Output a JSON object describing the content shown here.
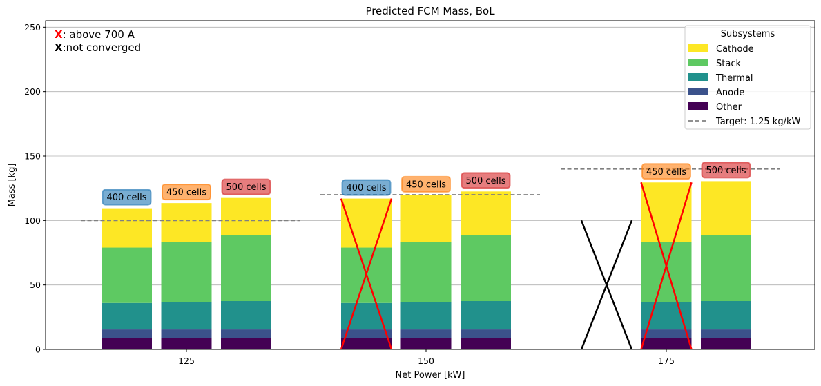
{
  "chart_data": {
    "type": "bar",
    "stacked": true,
    "title": "Predicted FCM Mass, BoL",
    "xlabel": "Net Power [kW]",
    "ylabel": "Mass [kg]",
    "ylim": [
      0,
      255
    ],
    "yticks": [
      0,
      50,
      100,
      150,
      200,
      250
    ],
    "grid": "y",
    "legend": {
      "title": "Subsystems",
      "placement": "top-right",
      "target_label": "Target: 1.25 kg/kW"
    },
    "series": [
      {
        "name": "Other",
        "color": "#440154"
      },
      {
        "name": "Anode",
        "color": "#3b528b"
      },
      {
        "name": "Thermal",
        "color": "#21918c"
      },
      {
        "name": "Stack",
        "color": "#5ec962"
      },
      {
        "name": "Cathode",
        "color": "#fde725"
      }
    ],
    "cell_colors": {
      "400 cells": "#1f77b4",
      "450 cells": "#ff7f0e",
      "500 cells": "#d62728"
    },
    "groups": [
      {
        "net_power": "125",
        "target": 100,
        "bars": [
          {
            "label": "400 cells",
            "values": [
              9,
              6.5,
              20.5,
              43,
              30.5
            ],
            "flag": "none"
          },
          {
            "label": "450 cells",
            "values": [
              9,
              6.5,
              21,
              47,
              30
            ],
            "flag": "none"
          },
          {
            "label": "500 cells",
            "values": [
              9,
              6.5,
              22,
              51,
              29
            ],
            "flag": "none"
          }
        ]
      },
      {
        "net_power": "150",
        "target": 120,
        "bars": [
          {
            "label": "400 cells",
            "values": [
              9,
              6.5,
              20.5,
              43,
              38
            ],
            "flag": "above_700A"
          },
          {
            "label": "450 cells",
            "values": [
              9,
              6.5,
              21,
              47,
              36
            ],
            "flag": "none"
          },
          {
            "label": "500 cells",
            "values": [
              9,
              6.5,
              22,
              51,
              34
            ],
            "flag": "none"
          }
        ]
      },
      {
        "net_power": "175",
        "target": 140,
        "bars": [
          {
            "label": "400 cells",
            "values": [],
            "flag": "not_converged"
          },
          {
            "label": "450 cells",
            "values": [
              9,
              6.5,
              21,
              47,
              46
            ],
            "flag": "above_700A"
          },
          {
            "label": "500 cells",
            "values": [
              9,
              6.5,
              22,
              51,
              42
            ],
            "flag": "none"
          }
        ]
      }
    ],
    "annotations": [
      {
        "marker": "X",
        "marker_color": "#ff0000",
        "text": ": above 700 A"
      },
      {
        "marker": "X",
        "marker_color": "#000000",
        "text": ":not converged"
      }
    ]
  }
}
